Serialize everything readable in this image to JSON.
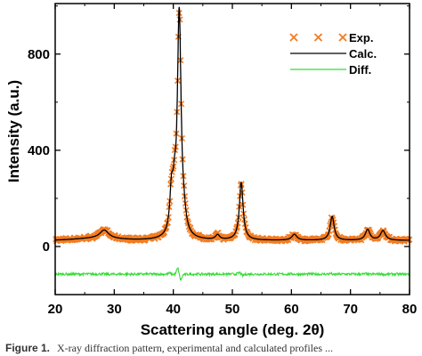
{
  "chart_data": {
    "type": "line",
    "xlabel": "Scattering angle (deg. 2θ)",
    "ylabel": "Intensity (a.u.)",
    "xlim": [
      20,
      80
    ],
    "ylim": [
      -200,
      1010
    ],
    "xticks": [
      20,
      30,
      40,
      50,
      60,
      70,
      80
    ],
    "yticks": [
      0,
      400,
      800
    ],
    "legend_position": "top-right",
    "grid": false,
    "background_level": 25,
    "diff_offset": -115,
    "peaks": [
      {
        "center": 28.3,
        "height": 35,
        "width": 0.9
      },
      {
        "center": 39.7,
        "height": 170,
        "width": 0.35
      },
      {
        "center": 40.2,
        "height": 120,
        "width": 0.3
      },
      {
        "center": 41.0,
        "height": 935,
        "width": 0.38
      },
      {
        "center": 41.8,
        "height": 45,
        "width": 0.4
      },
      {
        "center": 47.5,
        "height": 20,
        "width": 0.4
      },
      {
        "center": 51.5,
        "height": 240,
        "width": 0.38
      },
      {
        "center": 60.5,
        "height": 25,
        "width": 0.5
      },
      {
        "center": 66.9,
        "height": 100,
        "width": 0.4
      },
      {
        "center": 72.9,
        "height": 45,
        "width": 0.45
      },
      {
        "center": 75.5,
        "height": 40,
        "width": 0.5
      }
    ],
    "series": [
      {
        "name": "Exp.",
        "marker": "x",
        "color": "#f37b20"
      },
      {
        "name": "Calc.",
        "color": "#000000"
      },
      {
        "name": "Diff.",
        "color": "#33dd33"
      }
    ]
  },
  "caption": {
    "label": "Figure 1.",
    "text": "X-ray diffraction pattern, experimental and calculated profiles ..."
  }
}
